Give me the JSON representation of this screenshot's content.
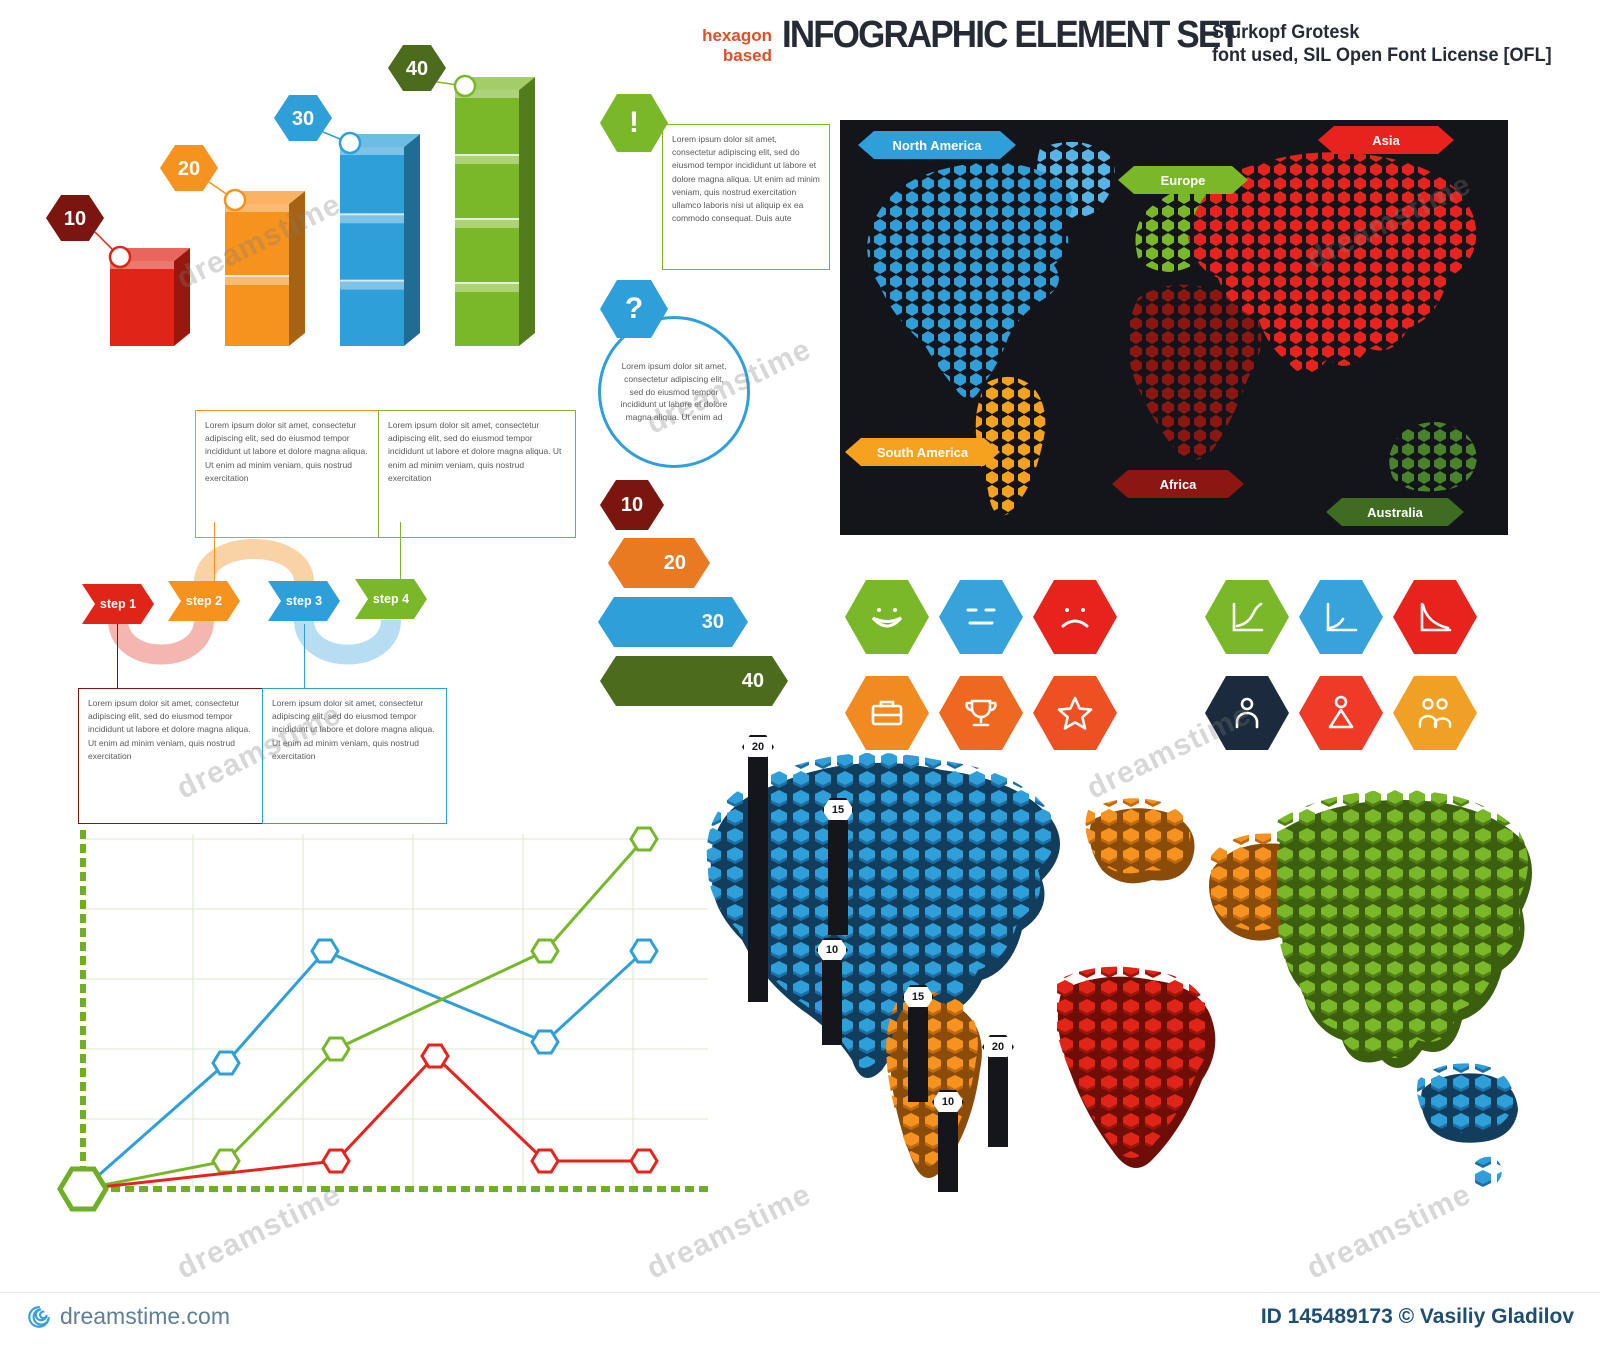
{
  "header": {
    "pre_line1": "hexagon",
    "pre_line2": "based",
    "title": "INFOGRAPHIC ELEMENT SET",
    "subtitle_line1": "Sturkopf Grotesk",
    "subtitle_line2": "font used, SIL Open Font License [OFL]"
  },
  "colors": {
    "red": "#e02417",
    "orange": "#f6921e",
    "blue": "#2e9fd9",
    "green": "#7ab829",
    "dark_green": "#4d6b1c",
    "maroon": "#7a150f",
    "panel": "#14141b",
    "title_ink": "#252a35",
    "pretitle_accent": "#e14f26"
  },
  "chart_data": [
    {
      "type": "bar",
      "title": "hexagon 3D bar chart",
      "categories": [
        "10",
        "20",
        "30",
        "40"
      ],
      "values": [
        10,
        20,
        30,
        40
      ],
      "colors": [
        "#e02417",
        "#f6921e",
        "#2e9fd9",
        "#7ab829"
      ],
      "label_colors": [
        "#7a150f",
        "#f6921e",
        "#2e9fd9",
        "#4d6b1c"
      ],
      "segments": [
        1,
        2,
        3,
        4
      ],
      "ylim": [
        0,
        40
      ]
    },
    {
      "type": "line",
      "title": "hexagon line chart",
      "x_range": [
        0,
        6
      ],
      "y_range": [
        0,
        5.2
      ],
      "grid": true,
      "axis_color": "#6fae25",
      "series": [
        {
          "name": "blue",
          "color": "#2e9fd9",
          "points": [
            [
              0,
              0
            ],
            [
              1.3,
              1.8
            ],
            [
              2.2,
              3.4
            ],
            [
              4.2,
              2.1
            ],
            [
              5.1,
              3.4
            ]
          ]
        },
        {
          "name": "green",
          "color": "#76b82a",
          "points": [
            [
              0,
              0
            ],
            [
              1.3,
              0.4
            ],
            [
              2.3,
              2.0
            ],
            [
              4.2,
              3.4
            ],
            [
              5.1,
              5.0
            ]
          ]
        },
        {
          "name": "red",
          "color": "#e8231d",
          "points": [
            [
              0,
              0
            ],
            [
              2.3,
              0.4
            ],
            [
              3.2,
              1.9
            ],
            [
              4.2,
              0.4
            ],
            [
              5.1,
              0.4
            ]
          ]
        }
      ]
    }
  ],
  "notes": {
    "exclamation": {
      "symbol": "!",
      "text": "Lorem ipsum dolor sit amet, consectetur adipiscing elit, sed do eiusmod tempor incididunt ut labore et dolore magna aliqua. Ut enim ad minim veniam, quis nostrud exercitation ullamco laboris nisi ut aliquip ex ea commodo consequat. Duis aute"
    },
    "question": {
      "symbol": "?",
      "text": "Lorem ipsum dolor sit amet, consectetur adipiscing elit, sed do eiusmod tempor incididunt ut labore et dolore magna aliqua. Ut enim ad"
    }
  },
  "steps": {
    "badges": [
      {
        "label": "step 1",
        "color": "#e02417"
      },
      {
        "label": "step 2",
        "color": "#f6921e"
      },
      {
        "label": "step 3",
        "color": "#2e9fd9"
      },
      {
        "label": "step 4",
        "color": "#7ab829"
      }
    ],
    "boxes": {
      "orange": "Lorem ipsum dolor sit amet, consectetur adipiscing elit, sed do eiusmod tempor incididunt ut labore et dolore magna aliqua. Ut enim ad minim veniam, quis nostrud exercitation",
      "green": "Lorem ipsum dolor sit amet, consectetur adipiscing elit, sed do eiusmod tempor incididunt ut labore et dolore magna aliqua. Ut enim ad minim veniam, quis nostrud exercitation",
      "maroon": "Lorem ipsum dolor sit amet, consectetur adipiscing elit, sed do eiusmod tempor incididunt ut labore et dolore magna aliqua. Ut enim ad minim veniam, quis nostrud exercitation",
      "blue": "Lorem ipsum dolor sit amet, consectetur adipiscing elit, sed do eiusmod tempor incididunt ut labore et dolore magna aliqua. Ut enim ad minim veniam, quis nostrud exercitation"
    }
  },
  "levels": [
    {
      "label": "10",
      "color": "#7a150f"
    },
    {
      "label": "20",
      "color": "#ea7a22"
    },
    {
      "label": "30",
      "color": "#2e9fd9"
    },
    {
      "label": "40",
      "color": "#4d6b1c"
    }
  ],
  "world_map": {
    "labels": [
      {
        "text": "North America",
        "color": "#2e9fd9"
      },
      {
        "text": "Europe",
        "color": "#7ab829"
      },
      {
        "text": "Asia",
        "color": "#e8231d"
      },
      {
        "text": "South America",
        "color": "#f6a21e"
      },
      {
        "text": "Africa",
        "color": "#8c1712"
      },
      {
        "text": "Australia",
        "color": "#3f6b22"
      }
    ]
  },
  "icon_grid": {
    "left": [
      {
        "name": "smiley-happy",
        "color": "#7ab829"
      },
      {
        "name": "smiley-neutral",
        "color": "#36a3da"
      },
      {
        "name": "smiley-sad",
        "color": "#e8231d"
      },
      {
        "name": "briefcase",
        "color": "#f08a21"
      },
      {
        "name": "trophy",
        "color": "#ee6820"
      },
      {
        "name": "star",
        "color": "#ef5023"
      }
    ],
    "right": [
      {
        "name": "chart-growth",
        "color": "#7ab829"
      },
      {
        "name": "chart-axes",
        "color": "#36a3da"
      },
      {
        "name": "chart-decline",
        "color": "#e8231d"
      },
      {
        "name": "person",
        "color": "#1b2b3d"
      },
      {
        "name": "person-alt",
        "color": "#ee3a26"
      },
      {
        "name": "people-group",
        "color": "#f0a125"
      }
    ]
  },
  "iso_map": {
    "bar_labels": [
      "20",
      "15",
      "10",
      "15",
      "20",
      "10"
    ]
  },
  "watermark": {
    "text": "dreamstime",
    "site": "dreamstime.com",
    "credit": "ID 145489173 © Vasiliy Gladilov"
  }
}
